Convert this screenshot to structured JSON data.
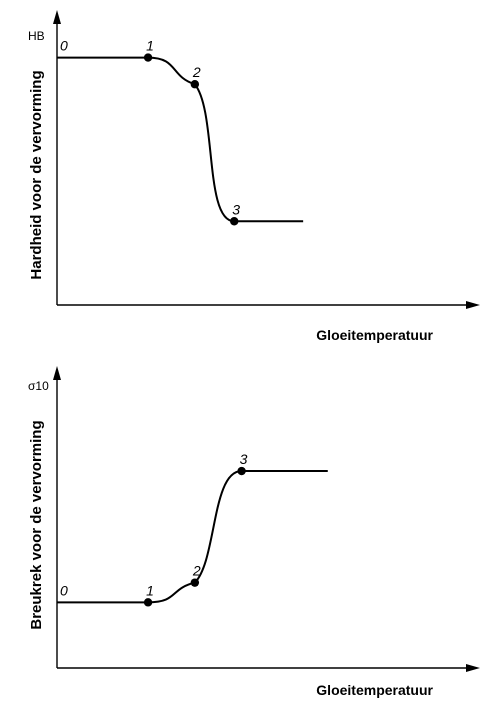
{
  "chart_data": [
    {
      "type": "line",
      "unit_label": "HB",
      "ylabel": "Hardheid voor de vervorming",
      "xlabel": "Gloeitemperatuur",
      "points": [
        {
          "label": "0",
          "x": 0,
          "y": 100
        },
        {
          "label": "1",
          "x": 0.37,
          "y": 100
        },
        {
          "label": "2",
          "x": 0.56,
          "y": 86
        },
        {
          "label": "3",
          "x": 0.72,
          "y": 14
        }
      ],
      "end": {
        "x": 1.0,
        "y": 14
      },
      "xlim": [
        0,
        1.3
      ],
      "ylim": [
        -30,
        125
      ],
      "grid": false
    },
    {
      "type": "line",
      "unit_label": "σ10",
      "ylabel": "Breukrek voor de vervorming",
      "xlabel": "Gloeitemperatuur",
      "points": [
        {
          "label": "0",
          "x": 0,
          "y": 0
        },
        {
          "label": "1",
          "x": 0.37,
          "y": 0
        },
        {
          "label": "2",
          "x": 0.56,
          "y": 15
        },
        {
          "label": "3",
          "x": 0.75,
          "y": 100
        }
      ],
      "end": {
        "x": 1.1,
        "y": 100
      },
      "xlim": [
        0,
        1.3
      ],
      "ylim": [
        -50,
        180
      ],
      "grid": false
    }
  ]
}
